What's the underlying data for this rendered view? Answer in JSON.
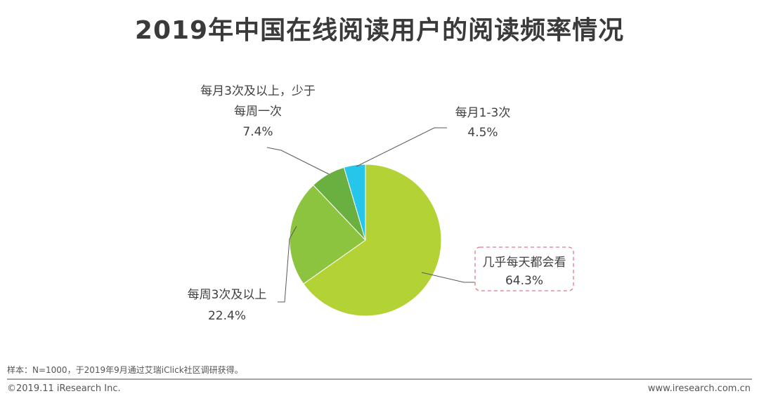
{
  "chart_data": {
    "type": "pie",
    "title": "2019年中国在线阅读用户的阅读频率情况",
    "slices": [
      {
        "label": "几乎每天都会看",
        "value": 64.3,
        "value_label": "64.3%",
        "color": "#b2d235"
      },
      {
        "label": "每周3次及以上",
        "value": 22.4,
        "value_label": "22.4%",
        "color": "#8cc43f"
      },
      {
        "label_lines": [
          "每月3次及以上，少于",
          "每周一次"
        ],
        "value": 7.4,
        "value_label": "7.4%",
        "color": "#6ab040"
      },
      {
        "label": "每月1-3次",
        "value": 4.5,
        "value_label": "4.5%",
        "color": "#26c6ea"
      }
    ],
    "highlighted_slice": "几乎每天都会看",
    "highlight_border_color": "#e07a8a"
  },
  "note": "样本：N=1000，于2019年9月通过艾瑞iClick社区调研获得。",
  "footer": {
    "copyright": "©2019.11 iResearch Inc.",
    "website": "www.iresearch.com.cn"
  }
}
